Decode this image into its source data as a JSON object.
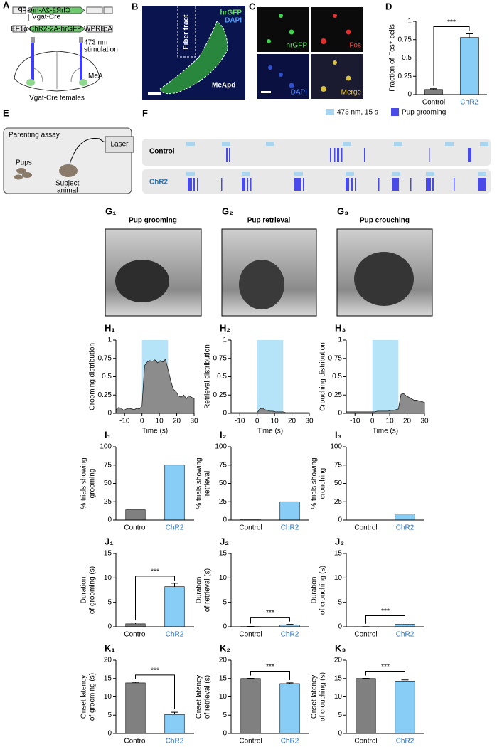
{
  "panel_labels": [
    "A",
    "B",
    "C",
    "D",
    "E",
    "F",
    "G₁",
    "G₂",
    "G₃",
    "H₁",
    "H₂",
    "H₃",
    "I₁",
    "I₂",
    "I₃",
    "J₁",
    "J₂",
    "J₃",
    "K₁",
    "K₂",
    "K₃"
  ],
  "panel_a": {
    "promoter": "EF1α",
    "insert": "ChR2-2A-hrGFP",
    "wpre": "WPRE",
    "pa": "pA",
    "cre": "Vgat-Cre",
    "stim_1": "473 nm",
    "stim_2": "stimulation",
    "region": "MeA",
    "animals": "Vgat-Cre females"
  },
  "panel_b": {
    "green": "hrGFP",
    "blue": "DAPI",
    "tract": "Fiber tract",
    "region": "MeApd"
  },
  "panel_c": {
    "green": "hrGFP",
    "red": "Fos",
    "blue": "DAPI",
    "merge": "Merge"
  },
  "panel_e": {
    "title": "Parenting assay",
    "pups": "Pups",
    "subject_1": "Subject",
    "subject_2": "animal",
    "laser": "Laser"
  },
  "panel_f": {
    "legend_stim": "473 nm, 15 s",
    "legend_behavior": "Pup grooming",
    "rows": [
      "Control",
      "ChR2"
    ]
  },
  "photos": [
    "Pup grooming",
    "Pup retrieval",
    "Pup crouching"
  ],
  "chart_data": [
    {
      "type": "bar",
      "categories": [
        "Control",
        "ChR2"
      ],
      "values": [
        0.07,
        0.78
      ],
      "errors": [
        0.01,
        0.05
      ],
      "colors": [
        "#808080",
        "#88cdf6"
      ],
      "category_colors": [
        "#000000",
        "#2b73b8"
      ],
      "ylim": [
        0,
        1
      ],
      "yticks": [
        0,
        0.25,
        0.5,
        0.75,
        1
      ],
      "ylabel": [
        "Fraction of Fos⁺ cells"
      ],
      "annotation": "***"
    },
    {
      "type": "area",
      "x": [
        -15,
        -13.5,
        -12,
        -10.5,
        -9,
        -7.5,
        -6,
        -4.5,
        -3,
        -1.5,
        0,
        1.5,
        3,
        4.5,
        6,
        7.5,
        9,
        10.5,
        12,
        13.5,
        15,
        16.5,
        18,
        19.5,
        21,
        22.5,
        24,
        25.5,
        27,
        28.5,
        30
      ],
      "values": [
        0.05,
        0.08,
        0.07,
        0.04,
        0.06,
        0.07,
        0.06,
        0.05,
        0.07,
        0.06,
        0.1,
        0.65,
        0.7,
        0.72,
        0.71,
        0.73,
        0.69,
        0.72,
        0.7,
        0.74,
        0.6,
        0.45,
        0.33,
        0.3,
        0.24,
        0.22,
        0.25,
        0.2,
        0.24,
        0.22,
        0.2
      ],
      "color": "#8c8c8c",
      "stim": [
        0,
        15
      ],
      "stim_color": "#b5e3f8",
      "xlim": [
        -15,
        30
      ],
      "xticks": [
        -10,
        0,
        10,
        20,
        30
      ],
      "ylim": [
        0,
        1
      ],
      "yticks": [
        0,
        0.25,
        0.5,
        0.75,
        1
      ],
      "xlabel": "Time (s)",
      "ylabel": [
        "Grooming distribution"
      ]
    },
    {
      "type": "area",
      "x": [
        -15,
        -13.5,
        -12,
        -10.5,
        -9,
        -7.5,
        -6,
        -4.5,
        -3,
        -1.5,
        0,
        1.5,
        3,
        4.5,
        6,
        7.5,
        9,
        10.5,
        12,
        13.5,
        15,
        16.5,
        18,
        19.5,
        21,
        22.5,
        24,
        25.5,
        27,
        28.5,
        30
      ],
      "values": [
        0.01,
        0.01,
        0.01,
        0.01,
        0.01,
        0.01,
        0.01,
        0.01,
        0.01,
        0.01,
        0.01,
        0.06,
        0.07,
        0.05,
        0.04,
        0.03,
        0.03,
        0.02,
        0.02,
        0.02,
        0.02,
        0.01,
        0.01,
        0.01,
        0.01,
        0.01,
        0.01,
        0.01,
        0.01,
        0.01,
        0.01
      ],
      "color": "#8c8c8c",
      "stim": [
        0,
        15
      ],
      "stim_color": "#b5e3f8",
      "xlim": [
        -15,
        30
      ],
      "xticks": [
        -10,
        0,
        10,
        20,
        30
      ],
      "ylim": [
        0,
        1
      ],
      "yticks": [
        0,
        0.25,
        0.5,
        0.75,
        1
      ],
      "xlabel": "Time (s)",
      "ylabel": [
        "Retrieval distribution"
      ]
    },
    {
      "type": "area",
      "x": [
        -15,
        -13.5,
        -12,
        -10.5,
        -9,
        -7.5,
        -6,
        -4.5,
        -3,
        -1.5,
        0,
        1.5,
        3,
        4.5,
        6,
        7.5,
        9,
        10.5,
        12,
        13.5,
        15,
        16.5,
        18,
        19.5,
        21,
        22.5,
        24,
        25.5,
        27,
        28.5,
        30
      ],
      "values": [
        0.02,
        0.02,
        0.02,
        0.02,
        0.02,
        0.02,
        0.02,
        0.02,
        0.02,
        0.02,
        0.02,
        0.02,
        0.03,
        0.03,
        0.03,
        0.03,
        0.03,
        0.04,
        0.04,
        0.05,
        0.06,
        0.26,
        0.27,
        0.24,
        0.22,
        0.2,
        0.18,
        0.18,
        0.17,
        0.16,
        0.15
      ],
      "color": "#8c8c8c",
      "stim": [
        0,
        15
      ],
      "stim_color": "#b5e3f8",
      "xlim": [
        -15,
        30
      ],
      "xticks": [
        -10,
        0,
        10,
        20,
        30
      ],
      "ylim": [
        0,
        1
      ],
      "yticks": [
        0,
        0.25,
        0.5,
        0.75,
        1
      ],
      "xlabel": "Time (s)",
      "ylabel": [
        "Crouching distribution"
      ]
    },
    {
      "type": "bar",
      "categories": [
        "Control",
        "ChR2"
      ],
      "values": [
        14,
        75
      ],
      "colors": [
        "#808080",
        "#88cdf6"
      ],
      "category_colors": [
        "#000000",
        "#2b73b8"
      ],
      "ylim": [
        0,
        100
      ],
      "yticks": [
        0,
        25,
        50,
        75,
        100
      ],
      "ylabel": [
        "% trials showing",
        "grooming"
      ]
    },
    {
      "type": "bar",
      "categories": [
        "Control",
        "ChR2"
      ],
      "values": [
        1.5,
        25
      ],
      "colors": [
        "#808080",
        "#88cdf6"
      ],
      "category_colors": [
        "#000000",
        "#2b73b8"
      ],
      "ylim": [
        0,
        100
      ],
      "yticks": [
        0,
        25,
        50,
        75,
        100
      ],
      "ylabel": [
        "% trials showing",
        "retrieval"
      ]
    },
    {
      "type": "bar",
      "categories": [
        "Control",
        "ChR2"
      ],
      "values": [
        0,
        8
      ],
      "colors": [
        "#808080",
        "#88cdf6"
      ],
      "category_colors": [
        "#000000",
        "#2b73b8"
      ],
      "ylim": [
        0,
        100
      ],
      "yticks": [
        0,
        25,
        50,
        75,
        100
      ],
      "ylabel": [
        "% trials showing",
        "crouching"
      ]
    },
    {
      "type": "bar",
      "categories": [
        "Control",
        "ChR2"
      ],
      "values": [
        0.6,
        8.2
      ],
      "errors": [
        0.2,
        0.7
      ],
      "colors": [
        "#808080",
        "#88cdf6"
      ],
      "category_colors": [
        "#000000",
        "#2b73b8"
      ],
      "ylim": [
        0,
        15
      ],
      "yticks": [
        0,
        5,
        10,
        15
      ],
      "ylabel": [
        "Duration",
        "of grooming (s)"
      ],
      "annotation": "***"
    },
    {
      "type": "bar",
      "categories": [
        "Control",
        "ChR2"
      ],
      "values": [
        0.05,
        0.4
      ],
      "errors": [
        0.03,
        0.1
      ],
      "colors": [
        "#808080",
        "#88cdf6"
      ],
      "category_colors": [
        "#000000",
        "#2b73b8"
      ],
      "ylim": [
        0,
        15
      ],
      "yticks": [
        0,
        5,
        10,
        15
      ],
      "ylabel": [
        "Duration",
        "of retrieval (s)"
      ],
      "annotation": "***"
    },
    {
      "type": "bar",
      "categories": [
        "Control",
        "ChR2"
      ],
      "values": [
        0.02,
        0.5
      ],
      "errors": [
        0.01,
        0.3
      ],
      "colors": [
        "#808080",
        "#88cdf6"
      ],
      "category_colors": [
        "#000000",
        "#2b73b8"
      ],
      "ylim": [
        0,
        15
      ],
      "yticks": [
        0,
        5,
        10,
        15
      ],
      "ylabel": [
        "Duration",
        "of crouching (s)"
      ],
      "annotation": "***"
    },
    {
      "type": "bar",
      "categories": [
        "Control",
        "ChR2"
      ],
      "values": [
        13.8,
        5.2
      ],
      "errors": [
        0.2,
        0.6
      ],
      "colors": [
        "#808080",
        "#88cdf6"
      ],
      "category_colors": [
        "#000000",
        "#2b73b8"
      ],
      "ylim": [
        0,
        20
      ],
      "yticks": [
        0,
        5,
        10,
        15,
        20
      ],
      "ylabel": [
        "Onset latency",
        "of grooming (s)"
      ],
      "annotation": "***"
    },
    {
      "type": "bar",
      "categories": [
        "Control",
        "ChR2"
      ],
      "values": [
        15,
        13.6
      ],
      "errors": [
        0.05,
        0.2
      ],
      "colors": [
        "#808080",
        "#88cdf6"
      ],
      "category_colors": [
        "#000000",
        "#2b73b8"
      ],
      "ylim": [
        0,
        20
      ],
      "yticks": [
        0,
        5,
        10,
        15,
        20
      ],
      "ylabel": [
        "Onset latency",
        "of retrieval (s)"
      ],
      "annotation": "***"
    },
    {
      "type": "bar",
      "categories": [
        "Control",
        "ChR2"
      ],
      "values": [
        15,
        14.3
      ],
      "errors": [
        0.05,
        0.3
      ],
      "colors": [
        "#808080",
        "#88cdf6"
      ],
      "category_colors": [
        "#000000",
        "#2b73b8"
      ],
      "ylim": [
        0,
        20
      ],
      "yticks": [
        0,
        5,
        10,
        15,
        20
      ],
      "ylabel": [
        "Onset latency",
        "of crouching (s)"
      ],
      "annotation": "***"
    }
  ]
}
